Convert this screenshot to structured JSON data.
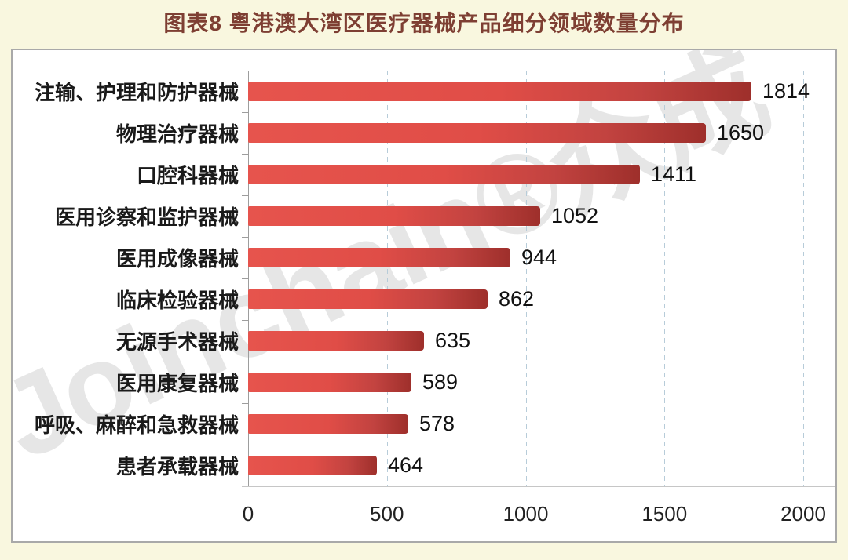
{
  "page": {
    "background": "#f9f7df",
    "card_background": "#ffffff",
    "card_border": "#a9a9a9"
  },
  "header": {
    "title": "图表8  粤港澳大湾区医疗器械产品细分领域数量分布",
    "color": "#7e3f33"
  },
  "watermark": {
    "text": "Joinchain®众成",
    "color": "#cfcfcf"
  },
  "chart_data": {
    "type": "bar",
    "orientation": "horizontal",
    "title": "图表8  粤港澳大湾区医疗器械产品细分领域数量分布",
    "categories": [
      "注输、护理和防护器械",
      "物理治疗器械",
      "口腔科器械",
      "医用诊察和监护器械",
      "医用成像器械",
      "临床检验器械",
      "无源手术器械",
      "医用康复器械",
      "呼吸、麻醉和急救器械",
      "患者承载器械"
    ],
    "values": [
      1814,
      1650,
      1411,
      1052,
      944,
      862,
      635,
      589,
      578,
      464
    ],
    "xlabel": "",
    "ylabel": "",
    "xlim": [
      0,
      2000
    ],
    "x_ticks": [
      0,
      500,
      1000,
      1500,
      2000
    ],
    "grid": "vertical-dashed",
    "legend": null,
    "bar_gradient": [
      "#e6544d",
      "#e04d47",
      "#c24340",
      "#9e2f2b"
    ],
    "gridline_color": "#b7ccd9",
    "axis_color": "#9d9d9d",
    "label_color": "#1a1a1a",
    "value_color": "#111111",
    "tick_label_color": "#222222"
  }
}
